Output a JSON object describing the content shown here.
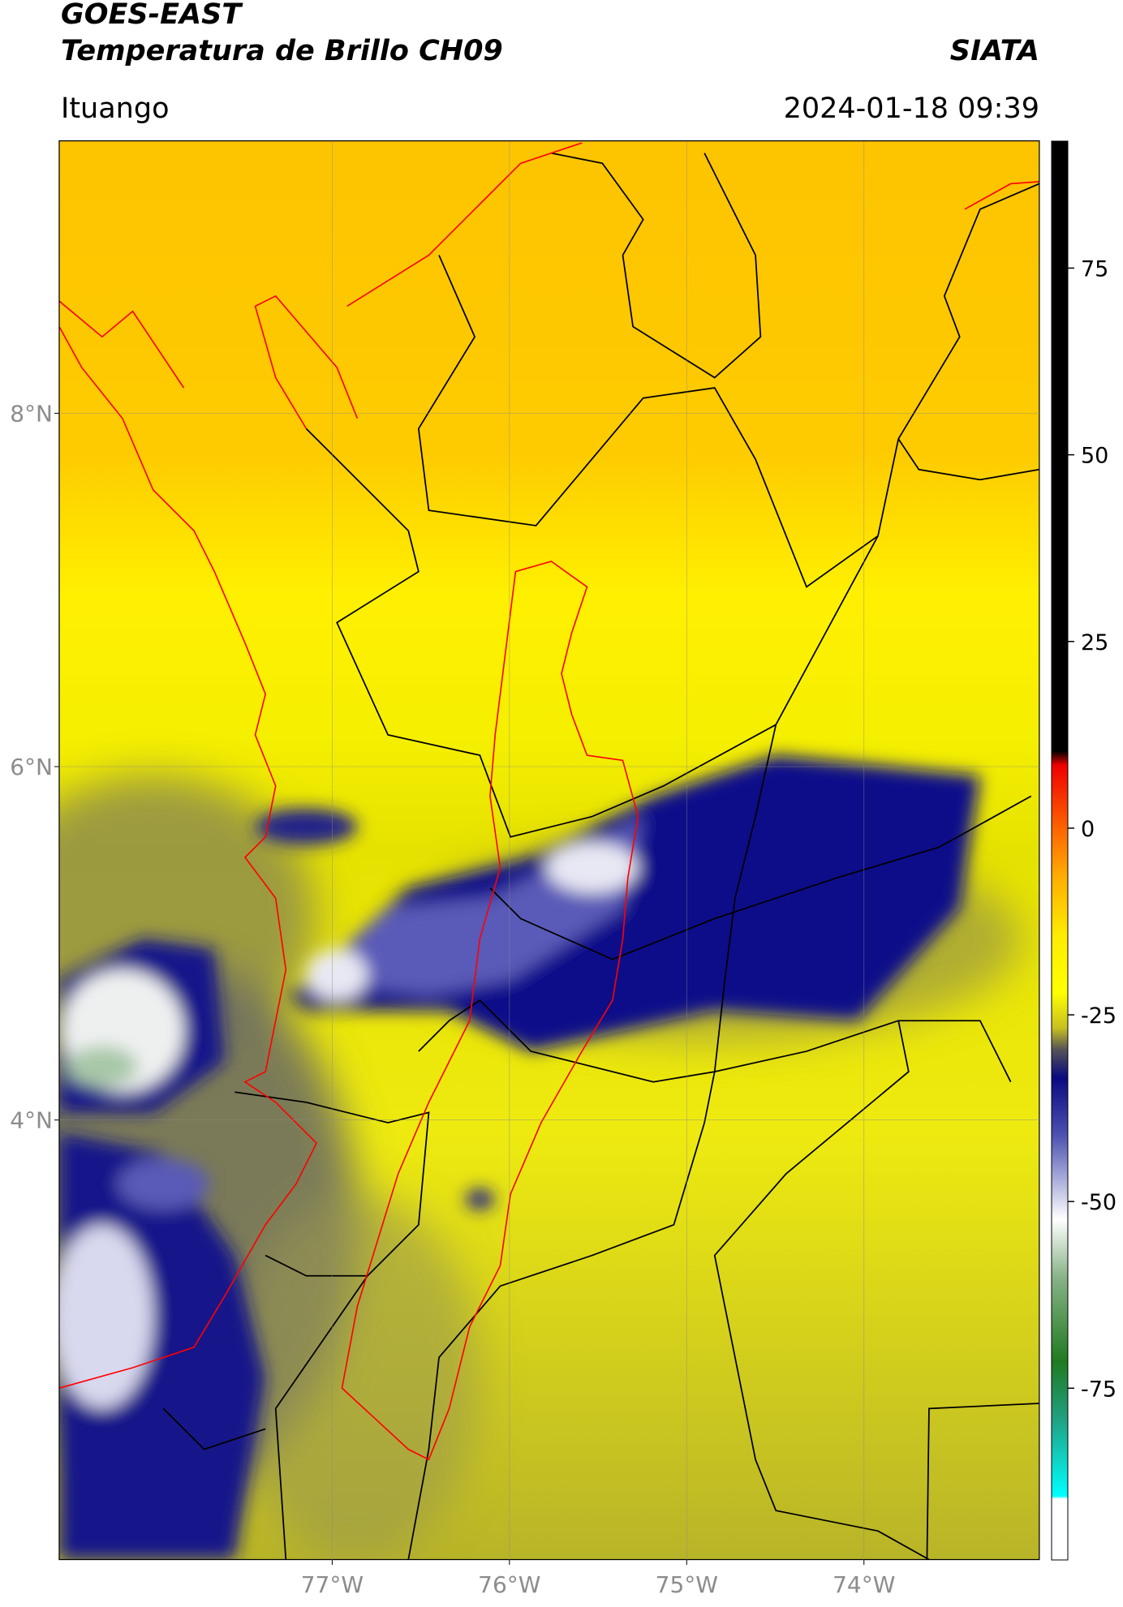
{
  "header": {
    "title": "GOES-EAST",
    "subtitle": "Temperatura de Brillo CH09",
    "source": "SIATA",
    "region": "Ituango",
    "datetime": "2024-01-18 09:39"
  },
  "map": {
    "xlim": [
      -78.54,
      -73.01
    ],
    "ylim": [
      1.51,
      9.54
    ],
    "xticks": [
      {
        "value": -77,
        "label": "77°W"
      },
      {
        "value": -76,
        "label": "76°W"
      },
      {
        "value": -75,
        "label": "75°W"
      },
      {
        "value": -74,
        "label": "74°W"
      }
    ],
    "yticks": [
      {
        "value": 8,
        "label": "8°N"
      },
      {
        "value": 6,
        "label": "6°N"
      },
      {
        "value": 4,
        "label": "4°N"
      }
    ],
    "grid": true
  },
  "colorbar": {
    "lim": [
      -98,
      92
    ],
    "ticks": [
      -75,
      -50,
      -25,
      0,
      25,
      50,
      75
    ]
  }
}
